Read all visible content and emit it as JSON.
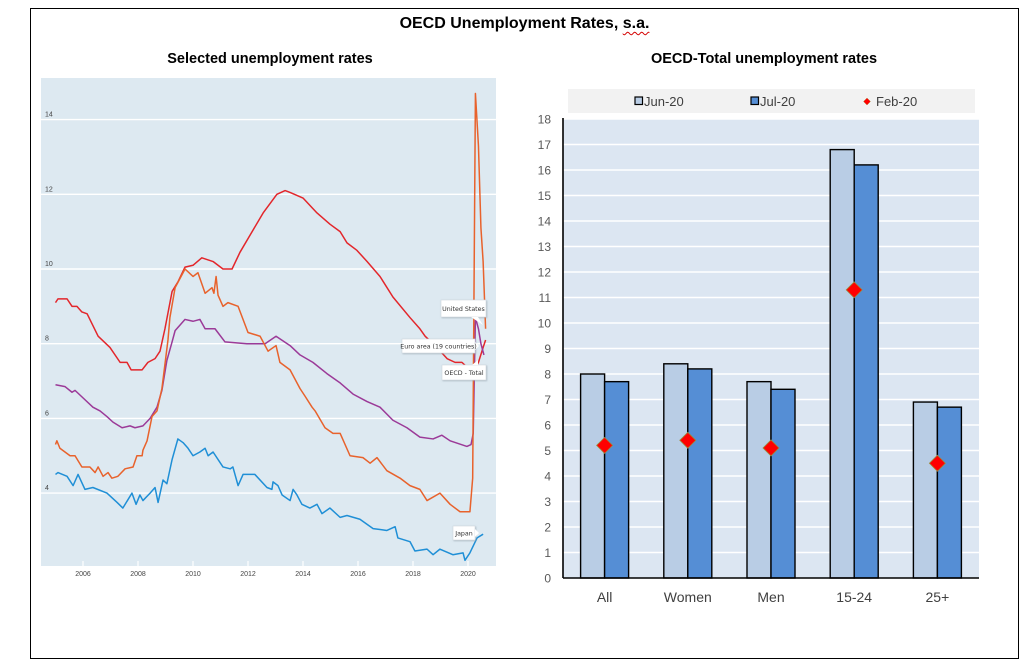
{
  "page": {
    "title_main": "OECD Unemployment Rates,",
    "title_suffix": "s.a."
  },
  "chart_data": [
    {
      "type": "line",
      "title": "Selected unemployment rates",
      "xlabel": "",
      "ylabel": "",
      "xlim": [
        2004.5,
        2021.0
      ],
      "ylim": [
        2,
        15
      ],
      "x_ticks": [
        2006,
        2008,
        2010,
        2012,
        2014,
        2016,
        2018,
        2020
      ],
      "y_ticks": [
        4,
        6,
        8,
        10,
        12,
        14
      ],
      "grid": true,
      "legend": "inline callouts at line ends",
      "series": [
        {
          "name": "Euro area (19 countries)",
          "color": "#e3262b",
          "points": [
            [
              2005.0,
              9.1
            ],
            [
              2005.09,
              9.2
            ],
            [
              2005.42,
              9.2
            ],
            [
              2005.6,
              9.0
            ],
            [
              2005.78,
              9.0
            ],
            [
              2005.96,
              8.85
            ],
            [
              2006.15,
              8.8
            ],
            [
              2006.55,
              8.2
            ],
            [
              2006.98,
              7.9
            ],
            [
              2007.35,
              7.5
            ],
            [
              2007.6,
              7.5
            ],
            [
              2007.75,
              7.3
            ],
            [
              2008.15,
              7.3
            ],
            [
              2008.36,
              7.5
            ],
            [
              2008.62,
              7.6
            ],
            [
              2008.8,
              7.8
            ],
            [
              2008.98,
              8.4
            ],
            [
              2009.24,
              9.4
            ],
            [
              2009.45,
              9.65
            ],
            [
              2009.71,
              10.05
            ],
            [
              2010.0,
              10.1
            ],
            [
              2010.32,
              10.3
            ],
            [
              2010.73,
              10.2
            ],
            [
              2011.09,
              10.0
            ],
            [
              2011.42,
              10.0
            ],
            [
              2011.71,
              10.45
            ],
            [
              2012.07,
              10.9
            ],
            [
              2012.55,
              11.5
            ],
            [
              2013.05,
              12.0
            ],
            [
              2013.35,
              12.1
            ],
            [
              2013.53,
              12.05
            ],
            [
              2014.0,
              11.9
            ],
            [
              2014.51,
              11.5
            ],
            [
              2014.98,
              11.2
            ],
            [
              2015.35,
              11.0
            ],
            [
              2015.6,
              10.7
            ],
            [
              2015.96,
              10.5
            ],
            [
              2016.33,
              10.2
            ],
            [
              2016.8,
              9.8
            ],
            [
              2017.27,
              9.25
            ],
            [
              2017.89,
              8.7
            ],
            [
              2018.25,
              8.4
            ],
            [
              2018.44,
              8.2
            ],
            [
              2018.87,
              7.9
            ],
            [
              2019.24,
              7.6
            ],
            [
              2019.53,
              7.5
            ],
            [
              2019.78,
              7.5
            ],
            [
              2020.07,
              7.3
            ],
            [
              2020.22,
              7.3
            ],
            [
              2020.38,
              7.5
            ],
            [
              2020.55,
              7.9
            ],
            [
              2020.64,
              8.1
            ]
          ]
        },
        {
          "name": "OECD - Total",
          "color": "#9b3a98",
          "points": [
            [
              2005.0,
              6.9
            ],
            [
              2005.35,
              6.85
            ],
            [
              2005.6,
              6.7
            ],
            [
              2005.71,
              6.75
            ],
            [
              2006.0,
              6.55
            ],
            [
              2006.36,
              6.3
            ],
            [
              2006.62,
              6.2
            ],
            [
              2006.87,
              6.05
            ],
            [
              2007.09,
              5.9
            ],
            [
              2007.42,
              5.75
            ],
            [
              2007.71,
              5.8
            ],
            [
              2007.89,
              5.75
            ],
            [
              2008.18,
              5.8
            ],
            [
              2008.44,
              6.0
            ],
            [
              2008.69,
              6.3
            ],
            [
              2008.87,
              6.75
            ],
            [
              2009.05,
              7.55
            ],
            [
              2009.24,
              8.05
            ],
            [
              2009.35,
              8.35
            ],
            [
              2009.71,
              8.65
            ],
            [
              2010.0,
              8.6
            ],
            [
              2010.25,
              8.65
            ],
            [
              2010.44,
              8.4
            ],
            [
              2010.8,
              8.4
            ],
            [
              2011.16,
              8.05
            ],
            [
              2011.96,
              8.0
            ],
            [
              2012.62,
              8.0
            ],
            [
              2013.02,
              8.2
            ],
            [
              2013.53,
              7.95
            ],
            [
              2013.89,
              7.7
            ],
            [
              2014.36,
              7.5
            ],
            [
              2014.87,
              7.2
            ],
            [
              2015.35,
              6.95
            ],
            [
              2015.82,
              6.65
            ],
            [
              2016.33,
              6.45
            ],
            [
              2016.8,
              6.3
            ],
            [
              2017.27,
              5.95
            ],
            [
              2017.78,
              5.75
            ],
            [
              2018.25,
              5.5
            ],
            [
              2018.73,
              5.45
            ],
            [
              2019.05,
              5.55
            ],
            [
              2019.35,
              5.4
            ],
            [
              2019.96,
              5.25
            ],
            [
              2020.11,
              5.3
            ],
            [
              2020.19,
              5.6
            ],
            [
              2020.27,
              8.7
            ],
            [
              2020.38,
              8.4
            ],
            [
              2020.47,
              8.0
            ],
            [
              2020.58,
              7.7
            ]
          ]
        },
        {
          "name": "Japan",
          "color": "#1f8fd6",
          "points": [
            [
              2005.0,
              4.5
            ],
            [
              2005.09,
              4.55
            ],
            [
              2005.42,
              4.45
            ],
            [
              2005.64,
              4.2
            ],
            [
              2005.82,
              4.5
            ],
            [
              2006.07,
              4.1
            ],
            [
              2006.36,
              4.15
            ],
            [
              2006.87,
              4.0
            ],
            [
              2007.24,
              3.75
            ],
            [
              2007.45,
              3.6
            ],
            [
              2007.78,
              4.0
            ],
            [
              2007.93,
              3.7
            ],
            [
              2008.07,
              3.95
            ],
            [
              2008.18,
              3.8
            ],
            [
              2008.44,
              4.0
            ],
            [
              2008.62,
              4.15
            ],
            [
              2008.73,
              3.75
            ],
            [
              2008.91,
              4.35
            ],
            [
              2009.05,
              4.25
            ],
            [
              2009.24,
              4.9
            ],
            [
              2009.45,
              5.45
            ],
            [
              2009.64,
              5.35
            ],
            [
              2009.82,
              5.2
            ],
            [
              2010.0,
              5.0
            ],
            [
              2010.25,
              5.1
            ],
            [
              2010.44,
              5.2
            ],
            [
              2010.55,
              5.0
            ],
            [
              2010.73,
              5.1
            ],
            [
              2011.09,
              4.7
            ],
            [
              2011.35,
              4.65
            ],
            [
              2011.45,
              4.7
            ],
            [
              2011.64,
              4.2
            ],
            [
              2011.82,
              4.5
            ],
            [
              2012.25,
              4.5
            ],
            [
              2012.69,
              4.15
            ],
            [
              2012.87,
              4.1
            ],
            [
              2012.91,
              4.3
            ],
            [
              2013.09,
              4.2
            ],
            [
              2013.24,
              3.95
            ],
            [
              2013.53,
              3.8
            ],
            [
              2013.64,
              4.1
            ],
            [
              2013.78,
              3.95
            ],
            [
              2013.96,
              3.7
            ],
            [
              2014.25,
              3.6
            ],
            [
              2014.51,
              3.7
            ],
            [
              2014.69,
              3.45
            ],
            [
              2014.98,
              3.6
            ],
            [
              2015.35,
              3.35
            ],
            [
              2015.6,
              3.4
            ],
            [
              2016.07,
              3.3
            ],
            [
              2016.55,
              3.05
            ],
            [
              2017.05,
              3.0
            ],
            [
              2017.35,
              3.1
            ],
            [
              2017.45,
              2.8
            ],
            [
              2017.89,
              2.7
            ],
            [
              2018.07,
              2.45
            ],
            [
              2018.51,
              2.5
            ],
            [
              2018.73,
              2.35
            ],
            [
              2018.98,
              2.5
            ],
            [
              2019.45,
              2.35
            ],
            [
              2019.82,
              2.4
            ],
            [
              2019.89,
              2.2
            ],
            [
              2020.07,
              2.4
            ],
            [
              2020.33,
              2.8
            ],
            [
              2020.55,
              2.9
            ]
          ]
        },
        {
          "name": "United States",
          "color": "#e8622c",
          "points": [
            [
              2005.0,
              5.3
            ],
            [
              2005.05,
              5.4
            ],
            [
              2005.16,
              5.2
            ],
            [
              2005.53,
              5.0
            ],
            [
              2005.71,
              5.0
            ],
            [
              2005.96,
              4.7
            ],
            [
              2006.25,
              4.7
            ],
            [
              2006.44,
              4.55
            ],
            [
              2006.55,
              4.7
            ],
            [
              2006.73,
              4.45
            ],
            [
              2006.91,
              4.55
            ],
            [
              2007.05,
              4.4
            ],
            [
              2007.27,
              4.45
            ],
            [
              2007.53,
              4.65
            ],
            [
              2007.82,
              4.7
            ],
            [
              2007.96,
              5.0
            ],
            [
              2008.15,
              5.0
            ],
            [
              2008.18,
              5.15
            ],
            [
              2008.33,
              5.4
            ],
            [
              2008.51,
              6.05
            ],
            [
              2008.69,
              6.2
            ],
            [
              2008.87,
              6.8
            ],
            [
              2009.09,
              8.1
            ],
            [
              2009.16,
              8.7
            ],
            [
              2009.35,
              9.5
            ],
            [
              2009.71,
              10.0
            ],
            [
              2010.0,
              9.8
            ],
            [
              2010.18,
              9.9
            ],
            [
              2010.44,
              9.35
            ],
            [
              2010.69,
              9.5
            ],
            [
              2010.76,
              9.35
            ],
            [
              2010.84,
              9.8
            ],
            [
              2010.91,
              9.3
            ],
            [
              2011.09,
              9.0
            ],
            [
              2011.27,
              9.1
            ],
            [
              2011.64,
              9.0
            ],
            [
              2012.0,
              8.3
            ],
            [
              2012.44,
              8.2
            ],
            [
              2012.73,
              7.8
            ],
            [
              2013.02,
              7.95
            ],
            [
              2013.16,
              7.5
            ],
            [
              2013.53,
              7.3
            ],
            [
              2013.89,
              6.8
            ],
            [
              2014.07,
              6.6
            ],
            [
              2014.33,
              6.3
            ],
            [
              2014.44,
              6.2
            ],
            [
              2014.8,
              5.75
            ],
            [
              2015.09,
              5.6
            ],
            [
              2015.35,
              5.6
            ],
            [
              2015.71,
              5.0
            ],
            [
              2016.18,
              4.95
            ],
            [
              2016.44,
              4.8
            ],
            [
              2016.69,
              4.95
            ],
            [
              2017.05,
              4.6
            ],
            [
              2017.53,
              4.4
            ],
            [
              2017.89,
              4.2
            ],
            [
              2018.25,
              4.1
            ],
            [
              2018.51,
              3.8
            ],
            [
              2018.98,
              4.0
            ],
            [
              2019.35,
              3.7
            ],
            [
              2019.71,
              3.5
            ],
            [
              2020.07,
              3.5
            ],
            [
              2020.17,
              4.4
            ],
            [
              2020.27,
              14.7
            ],
            [
              2020.38,
              13.3
            ],
            [
              2020.47,
              11.1
            ],
            [
              2020.55,
              10.2
            ],
            [
              2020.64,
              8.4
            ]
          ]
        }
      ]
    },
    {
      "type": "bar",
      "title": "OECD-Total unemployment rates",
      "xlabel": "",
      "ylabel": "",
      "categories": [
        "All",
        "Women",
        "Men",
        "15-24",
        "25+"
      ],
      "ylim": [
        0,
        18
      ],
      "y_ticks": [
        0,
        1,
        2,
        3,
        4,
        5,
        6,
        7,
        8,
        9,
        10,
        11,
        12,
        13,
        14,
        15,
        16,
        17,
        18
      ],
      "grid": true,
      "legend": "top",
      "series": [
        {
          "name": "Jun-20",
          "kind": "bar",
          "color": "#b9cde5",
          "values": [
            8.0,
            8.4,
            7.7,
            16.8,
            6.9
          ]
        },
        {
          "name": "Jul-20",
          "kind": "bar",
          "color": "#558ed5",
          "values": [
            7.7,
            8.2,
            7.4,
            16.2,
            6.7
          ]
        },
        {
          "name": "Feb-20",
          "kind": "marker-diamond",
          "color": "#ff0000",
          "values": [
            5.2,
            5.4,
            5.1,
            11.3,
            4.5
          ]
        }
      ]
    }
  ]
}
